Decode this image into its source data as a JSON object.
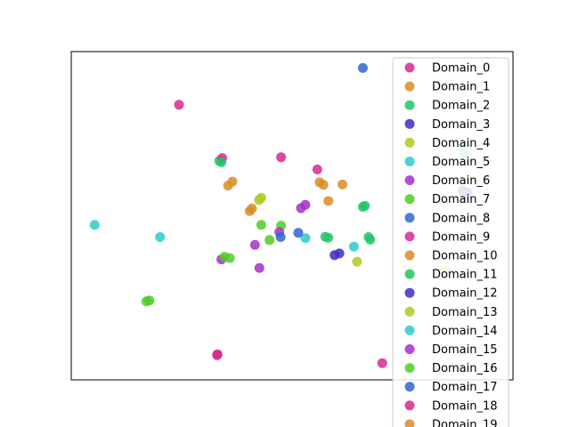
{
  "chart_data": {
    "type": "scatter",
    "title": "",
    "xlabel": "",
    "ylabel": "",
    "xlim": [
      0,
      100
    ],
    "ylim": [
      0,
      100
    ],
    "ticks": "none",
    "grid": false,
    "legend_position": "top-right",
    "series": [
      {
        "name": "Domain_0",
        "color": "#d62a8e",
        "points": [
          [
            24.4,
            83.8
          ],
          [
            70.4,
            5.1
          ]
        ]
      },
      {
        "name": "Domain_1",
        "color": "#d98c26",
        "points": [
          [
            35.5,
            59.2
          ],
          [
            56.2,
            60.2
          ],
          [
            40.9,
            52.2
          ]
        ]
      },
      {
        "name": "Domain_2",
        "color": "#1fc766",
        "points": [
          [
            66.0,
            52.7
          ],
          [
            33.5,
            66.7
          ],
          [
            67.7,
            42.7
          ],
          [
            58.2,
            43.3
          ]
        ]
      },
      {
        "name": "Domain_3",
        "color": "#3d2ec2",
        "points": [
          [
            88.6,
            57.6
          ],
          [
            60.7,
            38.5
          ]
        ]
      },
      {
        "name": "Domain_4",
        "color": "#a8cc1f",
        "points": [
          [
            42.5,
            54.8
          ],
          [
            84.7,
            33.2
          ]
        ]
      },
      {
        "name": "Domain_5",
        "color": "#29cccc",
        "points": [
          [
            5.3,
            47.2
          ],
          [
            89.0,
            69.0
          ],
          [
            53.0,
            43.2
          ]
        ]
      },
      {
        "name": "Domain_6",
        "color": "#a52ecc",
        "points": [
          [
            52.0,
            52.3
          ],
          [
            41.6,
            41.1
          ],
          [
            53.0,
            53.3
          ]
        ]
      },
      {
        "name": "Domain_7",
        "color": "#4fcc26",
        "points": [
          [
            43.0,
            47.2
          ],
          [
            35.9,
            37.1
          ],
          [
            17.7,
            24.2
          ],
          [
            47.5,
            47.0
          ]
        ]
      },
      {
        "name": "Domain_8",
        "color": "#2e66cc",
        "points": [
          [
            66.0,
            95.0
          ],
          [
            51.4,
            44.8
          ]
        ]
      },
      {
        "name": "Domain_9",
        "color": "#d62a8e",
        "points": [
          [
            34.2,
            67.6
          ],
          [
            55.7,
            64.1
          ],
          [
            33.0,
            7.5
          ]
        ]
      },
      {
        "name": "Domain_10",
        "color": "#d98c26",
        "points": [
          [
            36.5,
            60.4
          ],
          [
            57.1,
            59.4
          ],
          [
            40.4,
            51.4
          ]
        ]
      },
      {
        "name": "Domain_11",
        "color": "#1fc766",
        "points": [
          [
            66.5,
            53.0
          ],
          [
            34.0,
            66.3
          ],
          [
            67.3,
            43.5
          ],
          [
            57.5,
            43.6
          ]
        ]
      },
      {
        "name": "Domain_12",
        "color": "#3d2ec2",
        "points": [
          [
            89.6,
            57.1
          ],
          [
            59.6,
            38.0
          ]
        ]
      },
      {
        "name": "Domain_13",
        "color": "#a8cc1f",
        "points": [
          [
            43.0,
            55.5
          ],
          [
            64.7,
            36.0
          ]
        ]
      },
      {
        "name": "Domain_14",
        "color": "#29cccc",
        "points": [
          [
            20.1,
            43.5
          ],
          [
            64.0,
            40.6
          ]
        ]
      },
      {
        "name": "Domain_15",
        "color": "#a52ecc",
        "points": [
          [
            47.1,
            45.0
          ],
          [
            34.0,
            36.7
          ],
          [
            42.6,
            34.1
          ]
        ]
      },
      {
        "name": "Domain_16",
        "color": "#4fcc26",
        "points": [
          [
            34.7,
            37.5
          ],
          [
            44.9,
            42.6
          ],
          [
            17.0,
            23.9
          ]
        ]
      },
      {
        "name": "Domain_17",
        "color": "#2e66cc",
        "points": [
          [
            47.4,
            43.5
          ],
          [
            88.9,
            56.8
          ]
        ]
      },
      {
        "name": "Domain_18",
        "color": "#d62a8e",
        "points": [
          [
            33.1,
            7.8
          ],
          [
            47.5,
            67.8
          ]
        ]
      },
      {
        "name": "Domain_19",
        "color": "#d98c26",
        "points": [
          [
            58.2,
            54.5
          ],
          [
            61.4,
            59.5
          ]
        ]
      }
    ]
  }
}
